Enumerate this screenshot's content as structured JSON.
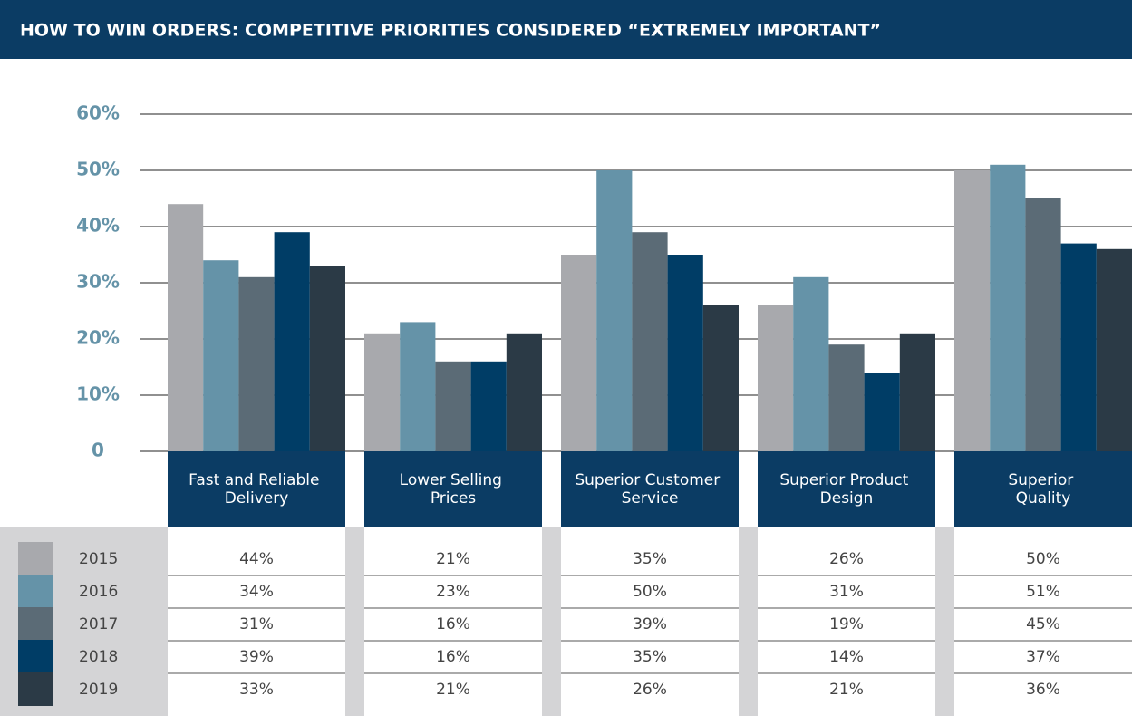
{
  "chart_data": {
    "type": "bar",
    "title": "HOW TO WIN ORDERS: COMPETITIVE PRIORITIES CONSIDERED “EXTREMELY IMPORTANT”",
    "categories": [
      "Fast and Reliable Delivery",
      "Lower Selling Prices",
      "Superior Customer Service",
      "Superior Product Design",
      "Superior Quality"
    ],
    "series": [
      {
        "name": "2015",
        "color": "#a8a9ad",
        "values": [
          44,
          21,
          35,
          26,
          50
        ],
        "value_labels": [
          "44%",
          "21%",
          "35%",
          "26%",
          "50%"
        ]
      },
      {
        "name": "2016",
        "color": "#6593a8",
        "values": [
          34,
          23,
          50,
          31,
          51
        ],
        "value_labels": [
          "34%",
          "23%",
          "50%",
          "31%",
          "51%"
        ]
      },
      {
        "name": "2017",
        "color": "#5b6b76",
        "values": [
          31,
          16,
          39,
          19,
          45
        ],
        "value_labels": [
          "31%",
          "16%",
          "39%",
          "19%",
          "45%"
        ]
      },
      {
        "name": "2018",
        "color": "#003d66",
        "values": [
          39,
          16,
          35,
          14,
          37
        ],
        "value_labels": [
          "39%",
          "16%",
          "35%",
          "14%",
          "37%"
        ]
      },
      {
        "name": "2019",
        "color": "#2b3a46",
        "values": [
          33,
          21,
          26,
          21,
          36
        ],
        "value_labels": [
          "33%",
          "21%",
          "26%",
          "21%",
          "36%"
        ]
      }
    ],
    "ylim": [
      0,
      60
    ],
    "yticks": [
      0,
      {
        "value": 10,
        "label": "10%"
      },
      {
        "value": 20,
        "label": "20%"
      },
      {
        "value": 30,
        "label": "30%"
      },
      {
        "value": 40,
        "label": "40%"
      },
      {
        "value": 50,
        "label": "50%"
      },
      {
        "value": 60,
        "label": "60%"
      }
    ],
    "grid": true
  }
}
